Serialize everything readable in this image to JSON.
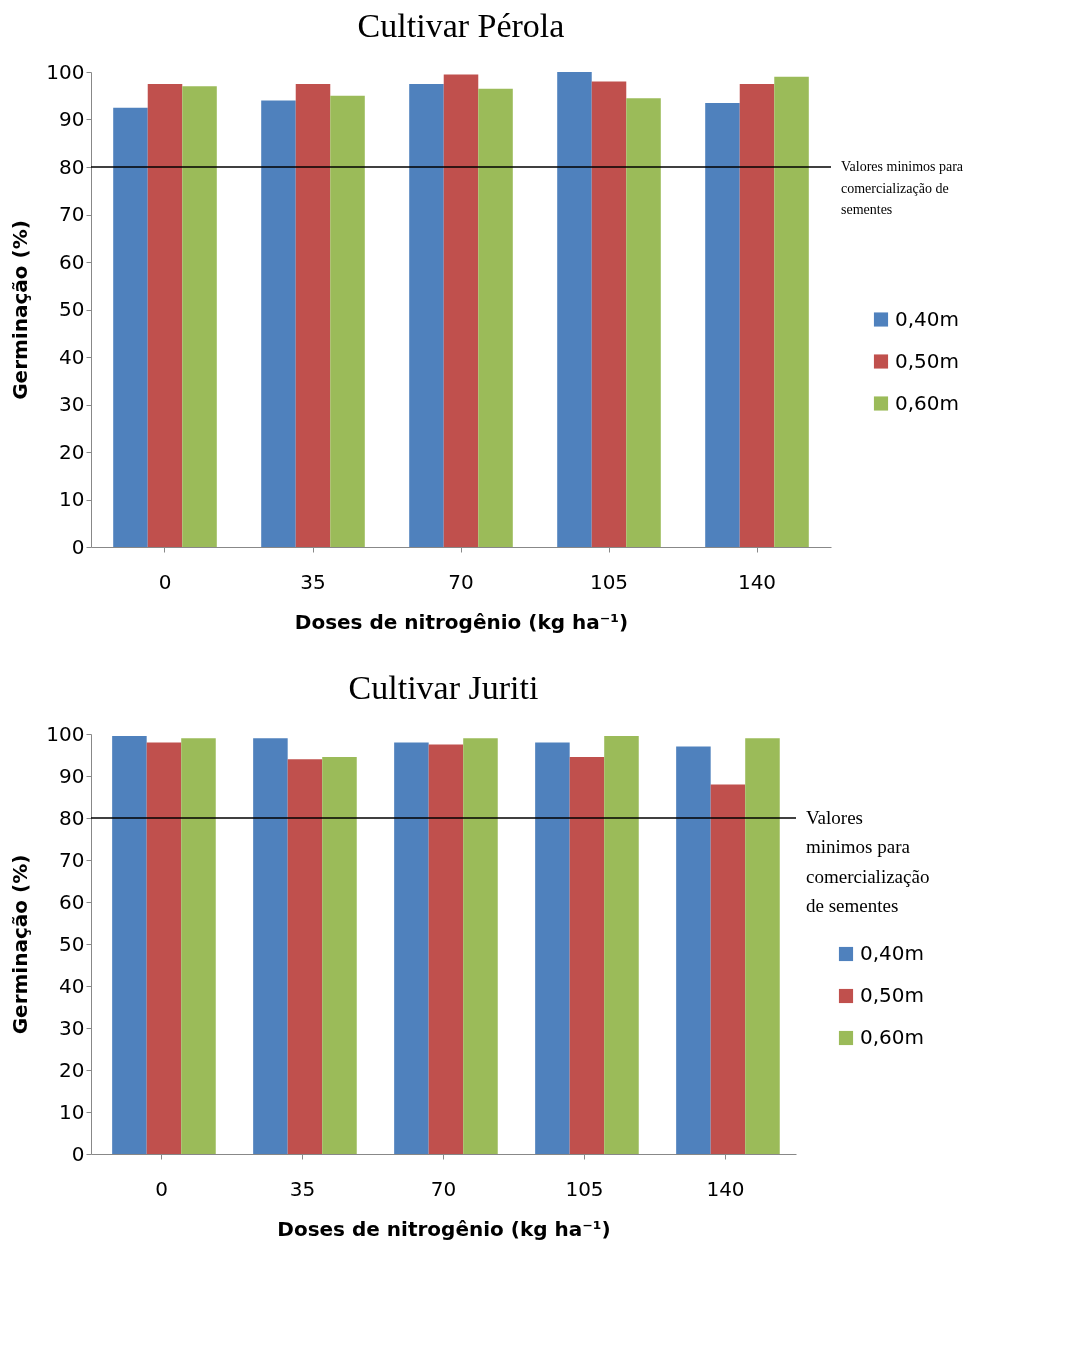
{
  "chart_data": [
    {
      "type": "bar",
      "title": "Cultivar Pérola",
      "xlabel": "Doses de nitrogênio (kg ha⁻¹)",
      "ylabel": "Germinação (%)",
      "categories": [
        "0",
        "35",
        "70",
        "105",
        "140"
      ],
      "series": [
        {
          "name": "0,40m",
          "color": "#4f81bd",
          "values": [
            92.5,
            94,
            97.5,
            100,
            93.5
          ]
        },
        {
          "name": "0,50m",
          "color": "#c0504d",
          "values": [
            97.5,
            97.5,
            99.5,
            98,
            97.5
          ]
        },
        {
          "name": "0,60m",
          "color": "#9bbb59",
          "values": [
            97,
            95,
            96.5,
            94.5,
            99
          ]
        }
      ],
      "ylim": [
        0,
        100
      ],
      "yticks": [
        0,
        10,
        20,
        30,
        40,
        50,
        60,
        70,
        80,
        90,
        100
      ],
      "grid": false,
      "legend": "right",
      "ref_lines": [
        {
          "axis": "y",
          "value": 80,
          "label": "Valores minimos para comercialização de sementes",
          "color": "#000000"
        }
      ]
    },
    {
      "type": "bar",
      "title": "Cultivar Juriti",
      "xlabel": "Doses de nitrogênio (kg ha⁻¹)",
      "ylabel": "Germinação (%)",
      "categories": [
        "0",
        "35",
        "70",
        "105",
        "140"
      ],
      "series": [
        {
          "name": "0,40m",
          "color": "#4f81bd",
          "values": [
            99.5,
            99,
            98,
            98,
            97
          ]
        },
        {
          "name": "0,50m",
          "color": "#c0504d",
          "values": [
            98,
            94,
            97.5,
            94.5,
            88
          ]
        },
        {
          "name": "0,60m",
          "color": "#9bbb59",
          "values": [
            99,
            94.5,
            99,
            99.5,
            99
          ]
        }
      ],
      "ylim": [
        0,
        100
      ],
      "yticks": [
        0,
        10,
        20,
        30,
        40,
        50,
        60,
        70,
        80,
        90,
        100
      ],
      "grid": false,
      "legend": "right",
      "ref_lines": [
        {
          "axis": "y",
          "value": 80,
          "label": "Valores minimos para comercialização de sementes",
          "color": "#000000"
        }
      ]
    }
  ]
}
